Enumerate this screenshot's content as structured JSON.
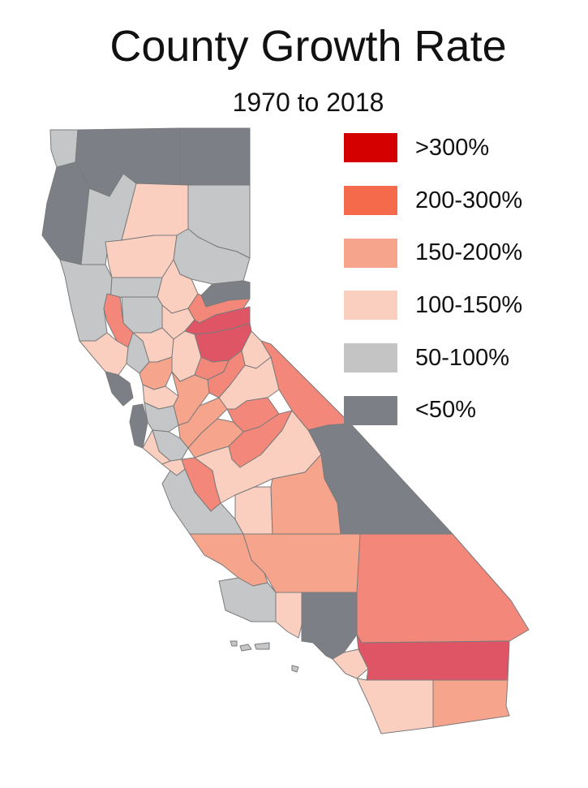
{
  "title": "County Growth Rate",
  "subtitle": "1970 to 2018",
  "legend": [
    {
      "label": ">300%",
      "color": "#d40000"
    },
    {
      "label": "200-300%",
      "color": "#f46a4a"
    },
    {
      "label": "150-200%",
      "color": "#f6a48c"
    },
    {
      "label": "100-150%",
      "color": "#fbcfc0"
    },
    {
      "label": "50-100%",
      "color": "#c4c4c4"
    },
    {
      "label": "<50%",
      "color": "#7d7f86"
    }
  ],
  "map_colors": {
    "dark_gray": "#7d7f86",
    "light_gray": "#c4c6c8",
    "pale_pink": "#fbcfc0",
    "salmon": "#f6a48c",
    "coral": "#f3877a",
    "crimson": "#e05566"
  }
}
